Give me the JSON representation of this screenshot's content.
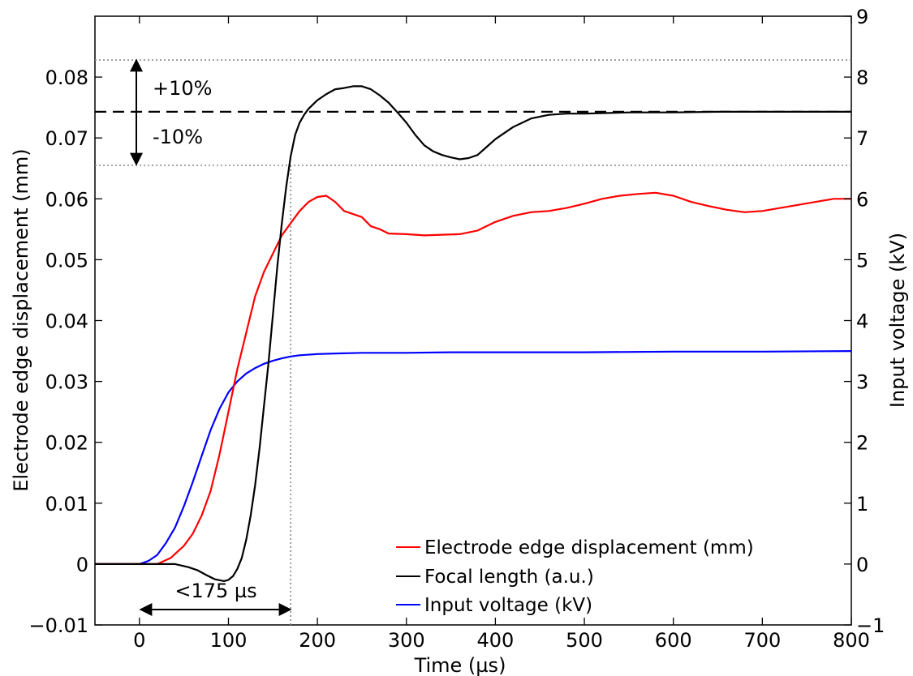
{
  "chart_data": {
    "type": "line",
    "title": "",
    "xlabel": "Time (µs)",
    "ylabel": "Electrode edge displacement (mm)",
    "y2label": "Input voltage (kV)",
    "xlim": [
      -50,
      800
    ],
    "ylim": [
      -0.01,
      0.09
    ],
    "y2lim": [
      -1,
      9
    ],
    "xticks": [
      0,
      100,
      200,
      300,
      400,
      500,
      600,
      700,
      800
    ],
    "xtick_labels": [
      "0",
      "100",
      "200",
      "300",
      "400",
      "500",
      "600",
      "700",
      "800"
    ],
    "yticks": [
      -0.01,
      0,
      0.01,
      0.02,
      0.03,
      0.04,
      0.05,
      0.06,
      0.07,
      0.08
    ],
    "ytick_labels": [
      "−0.01",
      "0",
      "0.01",
      "0.02",
      "0.03",
      "0.04",
      "0.05",
      "0.06",
      "0.07",
      "0.08"
    ],
    "y2ticks": [
      -1,
      0,
      1,
      2,
      3,
      4,
      5,
      6,
      7,
      8,
      9
    ],
    "y2tick_labels": [
      "−1",
      "0",
      "1",
      "2",
      "3",
      "4",
      "5",
      "6",
      "7",
      "8",
      "9"
    ],
    "grid": false,
    "legend_position": "bottom-right",
    "series": [
      {
        "name": "Electrode edge displacement (mm)",
        "color": "#ff0000",
        "axis": "left",
        "x": [
          -50,
          -20,
          0,
          20,
          35,
          50,
          60,
          70,
          80,
          90,
          100,
          110,
          120,
          130,
          140,
          150,
          160,
          170,
          180,
          190,
          200,
          210,
          220,
          230,
          240,
          250,
          260,
          270,
          280,
          300,
          320,
          340,
          360,
          380,
          400,
          420,
          440,
          460,
          480,
          500,
          520,
          540,
          560,
          580,
          600,
          620,
          640,
          660,
          680,
          700,
          720,
          740,
          760,
          780,
          800
        ],
        "y": [
          0,
          0,
          0,
          0,
          0.001,
          0.003,
          0.005,
          0.008,
          0.012,
          0.018,
          0.025,
          0.032,
          0.038,
          0.044,
          0.048,
          0.051,
          0.054,
          0.056,
          0.058,
          0.0595,
          0.0603,
          0.0605,
          0.0595,
          0.058,
          0.0575,
          0.057,
          0.0555,
          0.055,
          0.0543,
          0.0542,
          0.054,
          0.0541,
          0.0542,
          0.0548,
          0.0562,
          0.0572,
          0.0578,
          0.058,
          0.0585,
          0.0592,
          0.06,
          0.0605,
          0.0608,
          0.061,
          0.0605,
          0.0595,
          0.0588,
          0.0582,
          0.0578,
          0.058,
          0.0585,
          0.059,
          0.0595,
          0.06,
          0.06
        ]
      },
      {
        "name": "Focal length (a.u.)",
        "color": "#000000",
        "axis": "left",
        "x": [
          -50,
          0,
          20,
          40,
          55,
          65,
          75,
          85,
          95,
          100,
          105,
          110,
          115,
          120,
          125,
          130,
          135,
          140,
          145,
          150,
          155,
          160,
          165,
          170,
          175,
          180,
          185,
          190,
          200,
          210,
          220,
          230,
          240,
          250,
          260,
          270,
          280,
          290,
          300,
          310,
          320,
          330,
          340,
          350,
          360,
          370,
          380,
          390,
          400,
          420,
          440,
          460,
          480,
          500,
          550,
          600,
          650,
          700,
          750,
          800
        ],
        "y": [
          0,
          0,
          0,
          0,
          -0.0005,
          -0.001,
          -0.0018,
          -0.0025,
          -0.0028,
          -0.0026,
          -0.002,
          -0.0008,
          0.001,
          0.004,
          0.008,
          0.013,
          0.019,
          0.026,
          0.033,
          0.041,
          0.049,
          0.056,
          0.062,
          0.067,
          0.0705,
          0.0725,
          0.0738,
          0.0748,
          0.0762,
          0.0772,
          0.078,
          0.0782,
          0.0785,
          0.0785,
          0.078,
          0.077,
          0.0758,
          0.0742,
          0.0725,
          0.0705,
          0.0688,
          0.0678,
          0.0672,
          0.0668,
          0.0665,
          0.0667,
          0.0672,
          0.0685,
          0.0698,
          0.0718,
          0.0732,
          0.0738,
          0.074,
          0.074,
          0.0742,
          0.0742,
          0.0743,
          0.0743,
          0.0743,
          0.0743
        ]
      },
      {
        "name": "Input voltage (kV)",
        "color": "#0000ff",
        "axis": "right",
        "x": [
          -50,
          0,
          10,
          20,
          30,
          40,
          50,
          60,
          70,
          80,
          90,
          100,
          110,
          120,
          130,
          140,
          150,
          160,
          170,
          180,
          200,
          220,
          250,
          300,
          350,
          400,
          500,
          600,
          700,
          800
        ],
        "y": [
          0,
          0,
          0.05,
          0.15,
          0.35,
          0.6,
          0.95,
          1.35,
          1.78,
          2.2,
          2.55,
          2.82,
          3.0,
          3.13,
          3.22,
          3.29,
          3.34,
          3.38,
          3.41,
          3.43,
          3.45,
          3.46,
          3.47,
          3.47,
          3.48,
          3.48,
          3.48,
          3.49,
          3.49,
          3.5
        ]
      }
    ],
    "reference_lines": [
      {
        "kind": "horizontal-dashed",
        "axis": "left",
        "value": 0.0743
      },
      {
        "kind": "horizontal-dotted",
        "axis": "left",
        "value": 0.0828
      },
      {
        "kind": "horizontal-dotted",
        "axis": "left",
        "value": 0.0655
      },
      {
        "kind": "vertical-dotted",
        "x": 170
      }
    ],
    "annotations": {
      "plus": "+10%",
      "minus": "-10%",
      "time_span": "<175 µs"
    }
  }
}
